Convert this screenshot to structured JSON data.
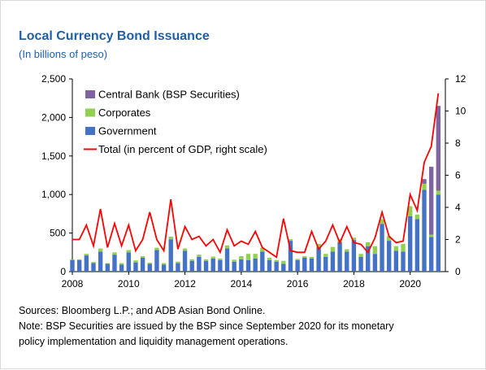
{
  "title": "Local Currency Bond Issuance",
  "subtitle": "(In billions of peso)",
  "notes": {
    "source": "Sources: Bloomberg L.P.; and ADB Asian Bond Online.",
    "note_line1": "Note: BSP Securities are issued by the BSP since September 2020 for its monetary",
    "note_line2": "policy implementation and liquidity management operations."
  },
  "colors": {
    "government": "#4472c4",
    "corporates": "#92d050",
    "central_bank": "#8064a2",
    "total": "#ff0000"
  },
  "chart_data": {
    "type": "bar",
    "stacked": true,
    "title": "Local Currency Bond Issuance",
    "subtitle": "(In billions of peso)",
    "x_ticks": [
      "2008",
      "2010",
      "2012",
      "2014",
      "2016",
      "2018",
      "2020"
    ],
    "y_ticks_left": [
      "0",
      "500",
      "1,000",
      "1,500",
      "2,000",
      "2,500"
    ],
    "y_ticks_right": [
      "0",
      "2",
      "4",
      "6",
      "8",
      "10",
      "12"
    ],
    "ylim_left": [
      0,
      2500
    ],
    "ylim_right": [
      0,
      12
    ],
    "xlim": [
      2008,
      2021.25
    ],
    "legend_position": "top-left",
    "grid": false,
    "x": [
      2008.0,
      2008.25,
      2008.5,
      2008.75,
      2009.0,
      2009.25,
      2009.5,
      2009.75,
      2010.0,
      2010.25,
      2010.5,
      2010.75,
      2011.0,
      2011.25,
      2011.5,
      2011.75,
      2012.0,
      2012.25,
      2012.5,
      2012.75,
      2013.0,
      2013.25,
      2013.5,
      2013.75,
      2014.0,
      2014.25,
      2014.5,
      2014.75,
      2015.0,
      2015.25,
      2015.5,
      2015.75,
      2016.0,
      2016.25,
      2016.5,
      2016.75,
      2017.0,
      2017.25,
      2017.5,
      2017.75,
      2018.0,
      2018.25,
      2018.5,
      2018.75,
      2019.0,
      2019.25,
      2019.5,
      2019.75,
      2020.0,
      2020.25,
      2020.5,
      2020.75,
      2021.0
    ],
    "series": [
      {
        "name": "Central Bank (BSP Securities)",
        "kind": "bar",
        "values": [
          0,
          0,
          0,
          0,
          0,
          0,
          0,
          0,
          0,
          0,
          0,
          0,
          0,
          0,
          0,
          0,
          0,
          0,
          0,
          0,
          0,
          0,
          0,
          0,
          0,
          0,
          0,
          0,
          0,
          0,
          0,
          0,
          0,
          0,
          0,
          0,
          0,
          0,
          0,
          0,
          0,
          0,
          0,
          0,
          0,
          0,
          0,
          0,
          0,
          0,
          60,
          880,
          1100
        ]
      },
      {
        "name": "Corporates",
        "kind": "bar",
        "values": [
          10,
          10,
          20,
          15,
          40,
          10,
          30,
          20,
          30,
          25,
          20,
          15,
          30,
          20,
          35,
          20,
          30,
          20,
          30,
          20,
          25,
          20,
          40,
          25,
          40,
          80,
          60,
          50,
          30,
          20,
          40,
          20,
          15,
          20,
          20,
          40,
          40,
          60,
          40,
          30,
          30,
          40,
          50,
          100,
          60,
          60,
          60,
          100,
          130,
          60,
          80,
          30,
          50
        ]
      },
      {
        "name": "Government",
        "kind": "bar",
        "values": [
          150,
          150,
          210,
          110,
          260,
          100,
          220,
          90,
          250,
          120,
          180,
          100,
          280,
          90,
          420,
          110,
          270,
          140,
          190,
          140,
          170,
          150,
          300,
          130,
          160,
          150,
          170,
          260,
          150,
          130,
          100,
          400,
          150,
          180,
          170,
          320,
          190,
          260,
          380,
          260,
          410,
          190,
          330,
          230,
          620,
          400,
          270,
          260,
          720,
          680,
          1060,
          450,
          1000
        ]
      },
      {
        "name": "Total (in percent of GDP, right scale)",
        "kind": "line",
        "axis": "right",
        "values": [
          2.0,
          2.0,
          2.9,
          1.6,
          3.9,
          1.5,
          3.0,
          1.6,
          2.9,
          1.3,
          2.0,
          3.7,
          2.0,
          1.3,
          4.5,
          1.4,
          2.8,
          2.0,
          2.2,
          1.6,
          2.0,
          1.2,
          2.6,
          1.6,
          1.9,
          1.7,
          2.5,
          1.5,
          1.2,
          0.9,
          3.3,
          1.3,
          1.2,
          1.2,
          2.5,
          1.4,
          1.9,
          2.9,
          1.8,
          2.8,
          1.8,
          1.7,
          1.2,
          2.1,
          3.7,
          2.2,
          1.8,
          1.9,
          4.8,
          3.8,
          6.8,
          7.8,
          11.1
        ]
      }
    ]
  }
}
